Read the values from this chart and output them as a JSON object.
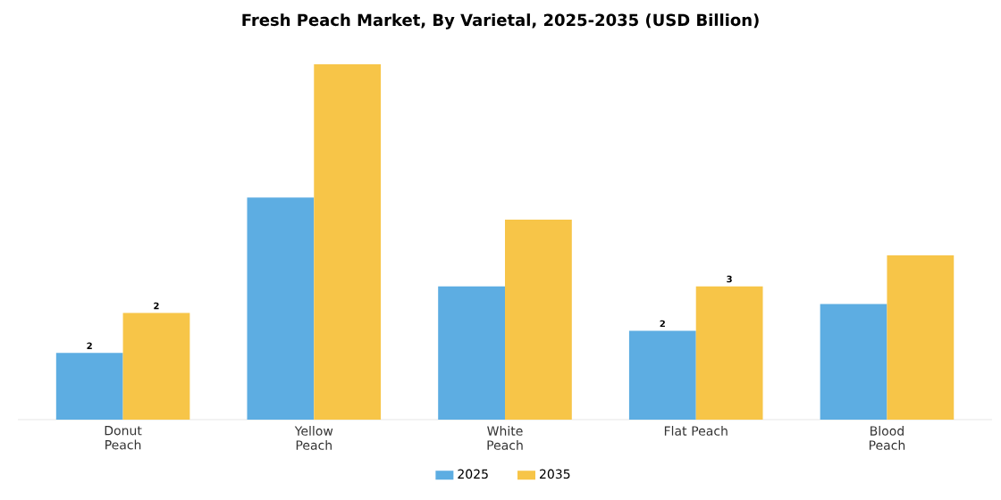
{
  "chart_data": {
    "type": "bar",
    "title": "Fresh Peach Market, By Varietal, 2025-2035 (USD Billion)",
    "categories": [
      "Donut Peach",
      "Yellow Peach",
      "White Peach",
      "Flat Peach",
      "Blood Peach"
    ],
    "series": [
      {
        "name": "2025",
        "color": "#5dade2",
        "values": [
          1.5,
          5.0,
          3.0,
          2.0,
          2.6
        ],
        "value_labels": [
          "2",
          null,
          null,
          "2",
          null
        ]
      },
      {
        "name": "2035",
        "color": "#f7c548",
        "values": [
          2.4,
          8.0,
          4.5,
          3.0,
          3.7
        ],
        "value_labels": [
          "2",
          null,
          null,
          "3",
          null
        ]
      }
    ],
    "legend": "bottom",
    "grid": false
  }
}
